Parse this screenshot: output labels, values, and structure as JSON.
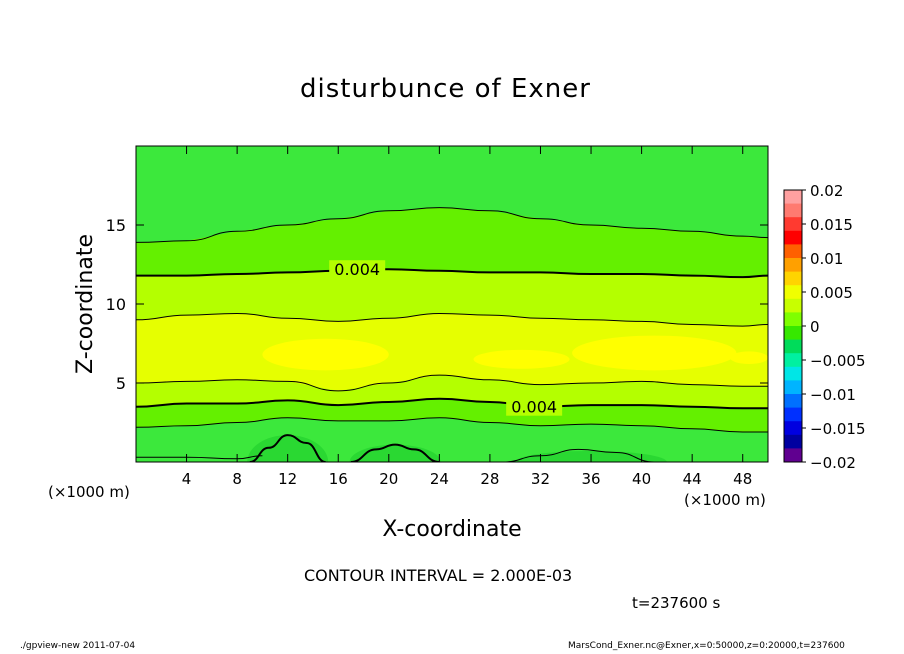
{
  "title": "disturbunce of Exner",
  "contour_interval_text": "CONTOUR INTERVAL = 2.000E-03",
  "time_text": "t=237600 s",
  "footer": {
    "left": "./gpview-new   2011-07-04",
    "right": "MarsCond_Exner.nc@Exner,x=0:50000,z=0:20000,t=237600"
  },
  "chart_data": {
    "type": "contour",
    "title": "disturbunce of Exner",
    "xlabel": "X-coordinate",
    "ylabel": "Z-coordinate",
    "x_unit_label": "(×1000 m)",
    "xlim": [
      0,
      50
    ],
    "ylim": [
      0,
      20
    ],
    "x_ticks": [
      4,
      8,
      12,
      16,
      20,
      24,
      28,
      32,
      36,
      40,
      44,
      48
    ],
    "y_ticks": [
      5,
      10,
      15
    ],
    "contour_interval": 0.002,
    "contour_labels": [
      {
        "text": "0.004",
        "x": 17.5,
        "z": 12.2
      },
      {
        "text": "0.004",
        "x": 31.5,
        "z": 3.5
      }
    ],
    "contours": [
      {
        "level": 0.002,
        "major": false,
        "points": [
          [
            0,
            13.9
          ],
          [
            4,
            14
          ],
          [
            8,
            14.6
          ],
          [
            12,
            15
          ],
          [
            16,
            15.4
          ],
          [
            20,
            15.9
          ],
          [
            24,
            16.1
          ],
          [
            28,
            15.9
          ],
          [
            32,
            15.4
          ],
          [
            36,
            15
          ],
          [
            40,
            14.8
          ],
          [
            44,
            14.6
          ],
          [
            48,
            14.3
          ],
          [
            50,
            14.2
          ]
        ]
      },
      {
        "level": 0.004,
        "major": true,
        "points": [
          [
            0,
            11.8
          ],
          [
            4,
            11.8
          ],
          [
            8,
            11.9
          ],
          [
            12,
            12
          ],
          [
            16,
            12.1
          ],
          [
            20,
            12.2
          ],
          [
            24,
            12.1
          ],
          [
            28,
            12
          ],
          [
            32,
            12
          ],
          [
            36,
            11.9
          ],
          [
            40,
            11.9
          ],
          [
            44,
            11.8
          ],
          [
            48,
            11.7
          ],
          [
            50,
            11.8
          ]
        ]
      },
      {
        "level": 0.006,
        "major": false,
        "points": [
          [
            0,
            9
          ],
          [
            4,
            9.3
          ],
          [
            8,
            9.4
          ],
          [
            12,
            9.1
          ],
          [
            16,
            8.9
          ],
          [
            20,
            9.1
          ],
          [
            24,
            9.4
          ],
          [
            28,
            9.3
          ],
          [
            32,
            9.1
          ],
          [
            36,
            9
          ],
          [
            40,
            8.9
          ],
          [
            44,
            8.7
          ],
          [
            48,
            8.6
          ],
          [
            50,
            8.7
          ]
        ]
      },
      {
        "level": 0.006,
        "major": false,
        "points": [
          [
            0,
            5
          ],
          [
            4,
            5.1
          ],
          [
            8,
            5.2
          ],
          [
            12,
            5.1
          ],
          [
            16,
            4.5
          ],
          [
            20,
            5
          ],
          [
            24,
            5.5
          ],
          [
            28,
            5.2
          ],
          [
            32,
            4.9
          ],
          [
            36,
            5
          ],
          [
            40,
            5.1
          ],
          [
            44,
            4.9
          ],
          [
            48,
            4.8
          ],
          [
            50,
            4.8
          ]
        ]
      },
      {
        "level": 0.004,
        "major": true,
        "points": [
          [
            0,
            3.5
          ],
          [
            4,
            3.7
          ],
          [
            8,
            3.7
          ],
          [
            12,
            3.9
          ],
          [
            16,
            3.6
          ],
          [
            20,
            3.8
          ],
          [
            24,
            4
          ],
          [
            28,
            3.8
          ],
          [
            32,
            3.5
          ],
          [
            36,
            3.6
          ],
          [
            40,
            3.6
          ],
          [
            44,
            3.5
          ],
          [
            48,
            3.4
          ],
          [
            50,
            3.4
          ]
        ]
      },
      {
        "level": 0.002,
        "major": false,
        "points": [
          [
            0,
            2.2
          ],
          [
            4,
            2.3
          ],
          [
            8,
            2.5
          ],
          [
            12,
            2.8
          ],
          [
            16,
            2.6
          ],
          [
            20,
            2.6
          ],
          [
            24,
            2.8
          ],
          [
            28,
            2.5
          ],
          [
            32,
            2.3
          ],
          [
            36,
            2.4
          ],
          [
            40,
            2.3
          ],
          [
            44,
            2.1
          ],
          [
            48,
            1.9
          ],
          [
            50,
            1.9
          ]
        ]
      },
      {
        "level": 0.0,
        "major": false,
        "points": [
          [
            0,
            0.3
          ],
          [
            4,
            0.3
          ],
          [
            8,
            0.2
          ],
          [
            10,
            0.4
          ]
        ]
      },
      {
        "level": 0.0,
        "major": true,
        "points": [
          [
            9,
            0
          ],
          [
            10.5,
            0.9
          ],
          [
            12,
            1.7
          ],
          [
            13.5,
            1.2
          ],
          [
            15,
            0
          ]
        ]
      },
      {
        "level": 0.0,
        "major": true,
        "points": [
          [
            17,
            0
          ],
          [
            19,
            0.8
          ],
          [
            20.5,
            1.1
          ],
          [
            22,
            0.8
          ],
          [
            24,
            0
          ]
        ]
      },
      {
        "level": 0.0,
        "major": false,
        "points": [
          [
            29,
            0
          ],
          [
            32,
            0.4
          ],
          [
            35,
            0.8
          ],
          [
            38,
            0.6
          ],
          [
            41,
            0
          ]
        ]
      }
    ],
    "colorbar": {
      "labels": [
        "0.02",
        "0.015",
        "0.01",
        "0.005",
        "0",
        "−0.005",
        "−0.01",
        "−0.015",
        "−0.02"
      ],
      "values": [
        0.02,
        0.015,
        0.01,
        0.005,
        0,
        -0.005,
        -0.01,
        -0.015,
        -0.02
      ],
      "colors": [
        "#ffa0a0",
        "#ff7a70",
        "#ff3a30",
        "#ff0000",
        "#ff6000",
        "#ffa000",
        "#ffd400",
        "#f0ff00",
        "#c8ff00",
        "#7fff00",
        "#36e800",
        "#00dc5a",
        "#00f0a0",
        "#00e6e6",
        "#00b4ff",
        "#0070ff",
        "#0030ff",
        "#0000e0",
        "#0000a0",
        "#600090"
      ]
    },
    "field_colors": {
      "highest": "#ffff00",
      "high": "#e6ff00",
      "mid": "#b4ff00",
      "low": "#64f000",
      "lowest": "#3ce83c"
    }
  }
}
